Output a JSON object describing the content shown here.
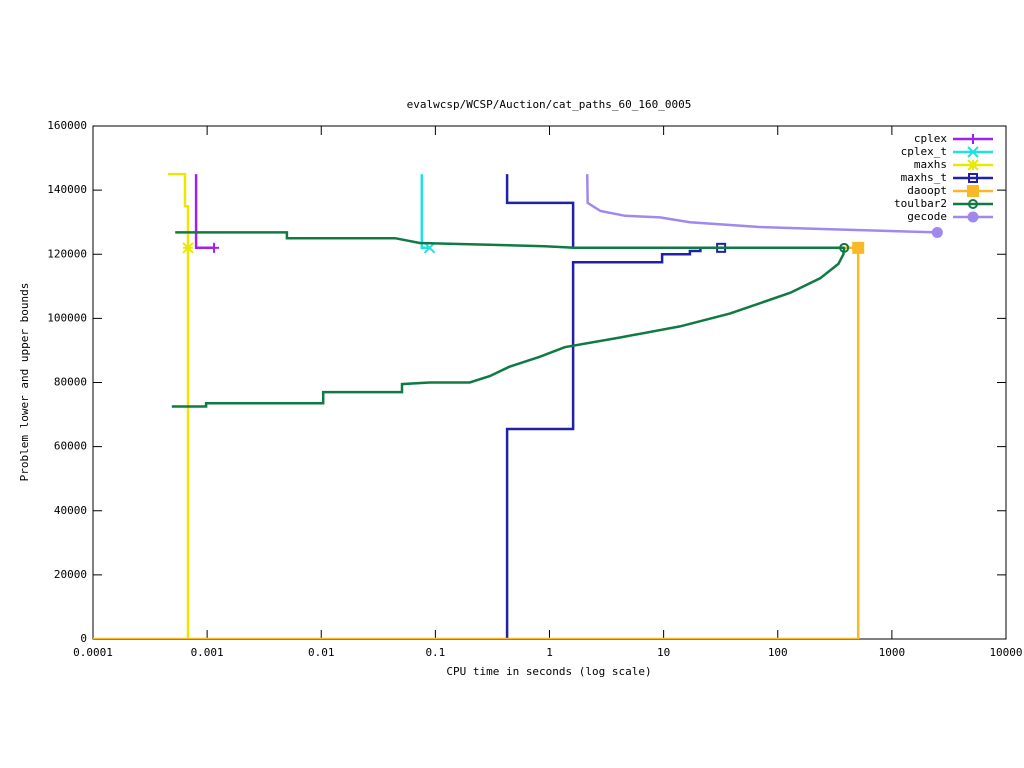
{
  "chart_data": {
    "type": "line",
    "title": "evalwcsp/WCSP/Auction/cat_paths_60_160_0005",
    "x_label": "CPU time in seconds (log scale)",
    "y_label": "Problem lower and upper bounds",
    "x_log": true,
    "xlim": [
      0.0001,
      10000
    ],
    "xticks": [
      0.0001,
      0.001,
      0.01,
      0.1,
      1,
      10,
      100,
      1000,
      10000
    ],
    "ylim": [
      0,
      160000
    ],
    "yticks": [
      0,
      20000,
      40000,
      60000,
      80000,
      100000,
      120000,
      140000,
      160000
    ],
    "grid": false,
    "legend": "top-right",
    "series": [
      {
        "name": "cplex",
        "color": "#a020f0",
        "marker": "plus",
        "x": [
          0.0008,
          0.0008,
          0.00115
        ],
        "values": [
          145000,
          122000,
          122000
        ]
      },
      {
        "name": "cplex_t",
        "color": "#20e0e0",
        "marker": "cross",
        "x": [
          0.076,
          0.076,
          0.089
        ],
        "values": [
          145000,
          122000,
          122000
        ]
      },
      {
        "name": "maxhs",
        "color": "#e8e800",
        "marker": "star",
        "x": [
          0.000454,
          0.00064,
          0.00064,
          0.00068,
          0.00068,
          0.00068
        ],
        "values": [
          145000,
          145000,
          135000,
          135000,
          0,
          122000
        ]
      },
      {
        "name": "maxhs_t",
        "color": "#2020a8",
        "marker": "square",
        "x": [
          0.425,
          0.425,
          1.61,
          1.61,
          9.7,
          9.7,
          17,
          17,
          21,
          21,
          31.9,
          null,
          0.425,
          0.425,
          1.61,
          1.61,
          31.9
        ],
        "values": [
          0,
          65500,
          65500,
          117500,
          117500,
          120000,
          120000,
          121000,
          121000,
          122000,
          122000,
          null,
          145000,
          136000,
          136000,
          122000,
          122000
        ]
      },
      {
        "name": "daoopt",
        "color": "#f8b828",
        "marker": "filled-square",
        "x": [
          0.0001,
          507,
          507,
          null,
          2.36,
          507
        ],
        "values": [
          0,
          0,
          122000,
          null,
          122000,
          122000
        ]
      },
      {
        "name": "toulbar2",
        "color": "#107a45",
        "marker": "circle",
        "x": [
          0.000525,
          0.005,
          0.005,
          0.0444,
          0.073,
          0.91,
          1.65,
          382,
          null,
          0.00049,
          0.00098,
          0.00098,
          0.0104,
          0.0104,
          0.051,
          0.051,
          0.089,
          0.2,
          0.3,
          0.45,
          0.82,
          1.36,
          4.1,
          13.9,
          38,
          129,
          235,
          340,
          376,
          382
        ],
        "values": [
          126800,
          126800,
          125000,
          125000,
          123500,
          122500,
          122000,
          122000,
          null,
          72500,
          72500,
          73500,
          73500,
          77000,
          77000,
          79500,
          80000,
          80000,
          82000,
          85000,
          88000,
          91000,
          94000,
          97500,
          101500,
          108000,
          112500,
          117000,
          120000,
          122000
        ]
      },
      {
        "name": "gecode",
        "color": "#a088ee",
        "marker": "filled-circle",
        "x": [
          2.14,
          2.16,
          2.8,
          4.6,
          9.3,
          17,
          69,
          288,
          2500
        ],
        "values": [
          145000,
          136000,
          133500,
          132000,
          131500,
          130000,
          128500,
          127800,
          126800
        ]
      }
    ]
  }
}
